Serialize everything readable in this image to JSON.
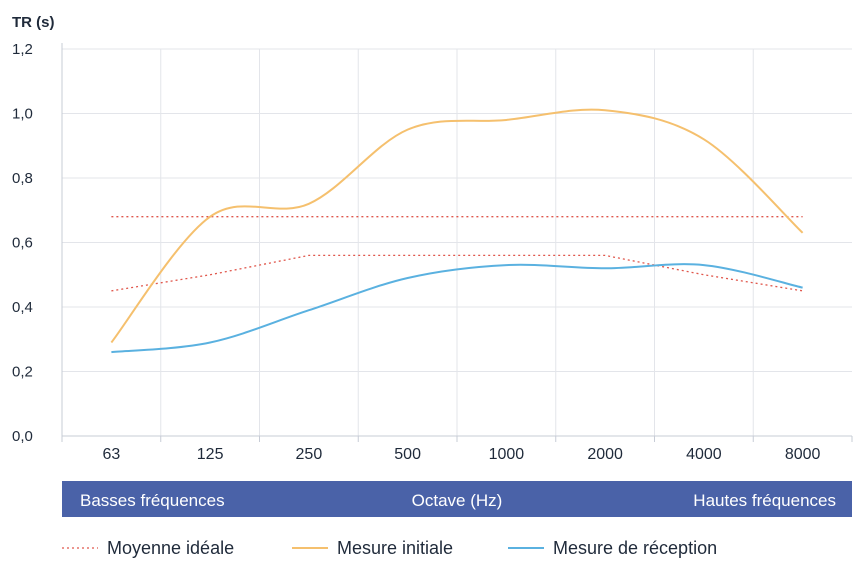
{
  "chart_data": {
    "type": "line",
    "ylabel": "TR (s)",
    "xlabel": "Octave (Hz)",
    "ylim": [
      0,
      1.2
    ],
    "yticks": [
      "0,0",
      "0,2",
      "0,4",
      "0,6",
      "0,8",
      "1,0",
      "1,2"
    ],
    "categories": [
      "63",
      "125",
      "250",
      "500",
      "1000",
      "2000",
      "4000",
      "8000"
    ],
    "grid": true,
    "band": {
      "left": "Basses fréquences",
      "center": "Octave (Hz)",
      "right": "Hautes fréquences",
      "color": "#4a62a8"
    },
    "legend_position": "bottom",
    "series": [
      {
        "name": "Moyenne idéale",
        "style": "dotted",
        "color": "#e0574c",
        "values": [
          0.68,
          0.68,
          0.68,
          0.68,
          0.68,
          0.68,
          0.68,
          0.68
        ]
      },
      {
        "name": "Moyenne idéale",
        "style": "dotted",
        "color": "#e0574c",
        "values": [
          0.45,
          0.5,
          0.56,
          0.56,
          0.56,
          0.56,
          0.5,
          0.45
        ]
      },
      {
        "name": "Mesure initiale",
        "style": "solid",
        "color": "#f5c06e",
        "values": [
          0.29,
          0.68,
          0.72,
          0.95,
          0.98,
          1.01,
          0.92,
          0.63
        ]
      },
      {
        "name": "Mesure de réception",
        "style": "solid",
        "color": "#5ab1e0",
        "values": [
          0.26,
          0.29,
          0.39,
          0.49,
          0.53,
          0.52,
          0.53,
          0.46
        ]
      }
    ],
    "legend": [
      {
        "label": "Moyenne idéale",
        "style": "dotted",
        "color": "#e0574c"
      },
      {
        "label": "Mesure initiale",
        "style": "solid",
        "color": "#f5c06e"
      },
      {
        "label": "Mesure de réception",
        "style": "solid",
        "color": "#5ab1e0"
      }
    ]
  }
}
